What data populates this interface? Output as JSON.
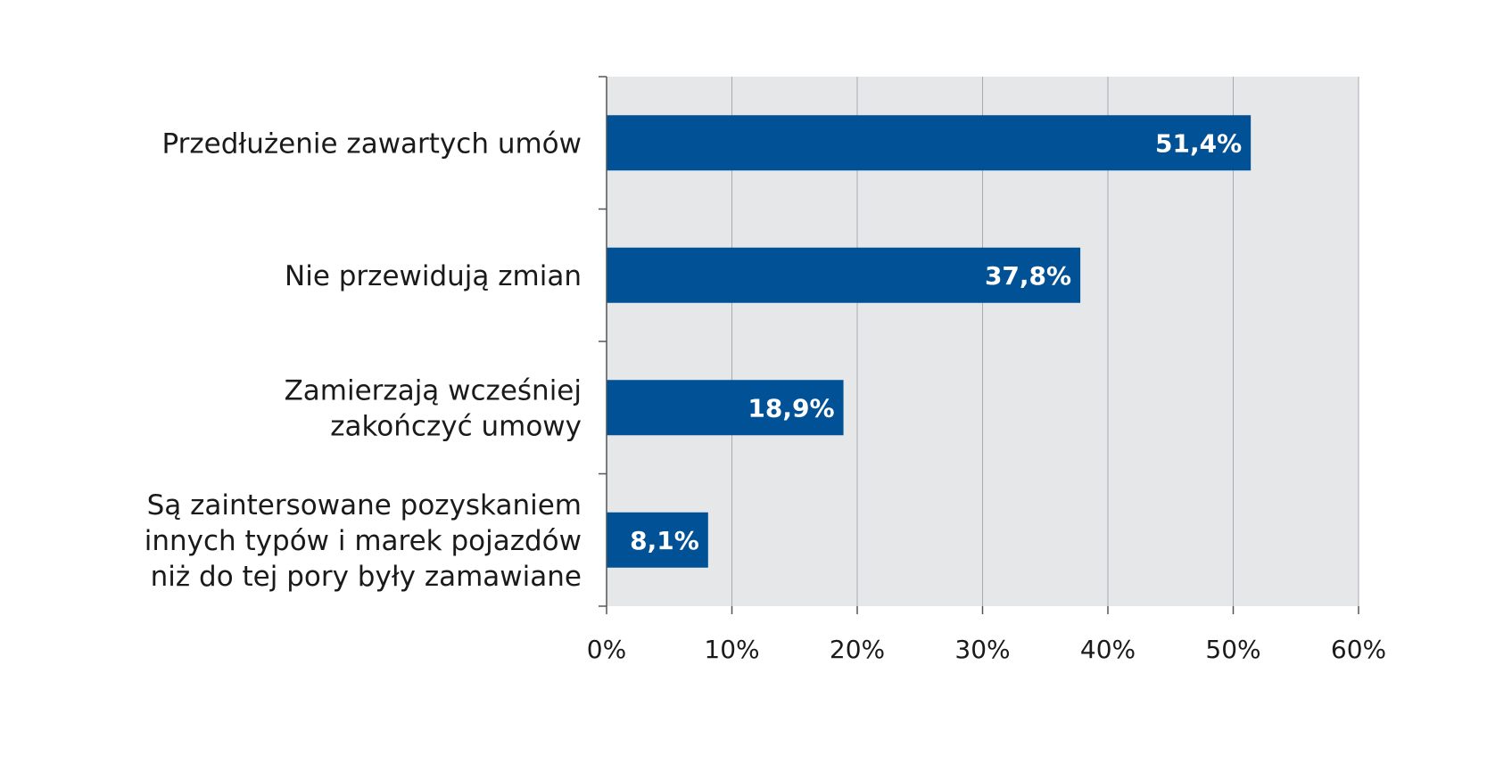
{
  "chart_data": {
    "type": "bar",
    "orientation": "horizontal",
    "categories": [
      [
        "Przedłużenie zawartych umów"
      ],
      [
        "Nie przewidują zmian"
      ],
      [
        "Zamierzają wcześniej",
        "zakończyć umowy"
      ],
      [
        "Są zaintersowane pozyskaniem",
        "innych typów i marek pojazdów",
        "niż do tej pory były zamawiane"
      ]
    ],
    "values": [
      51.4,
      37.8,
      18.9,
      8.1
    ],
    "value_labels": [
      "51,4%",
      "37,8%",
      "18,9%",
      "8,1%"
    ],
    "xlim": [
      0,
      60
    ],
    "ticks": [
      0,
      10,
      20,
      30,
      40,
      50,
      60
    ],
    "tick_labels": [
      "0%",
      "10%",
      "20%",
      "30%",
      "40%",
      "50%",
      "60%"
    ],
    "grid": true,
    "colors": {
      "bar": "#005196",
      "plot_background": "#e6e7e9",
      "gridline": "#a9abae",
      "axis": "#555555"
    }
  }
}
